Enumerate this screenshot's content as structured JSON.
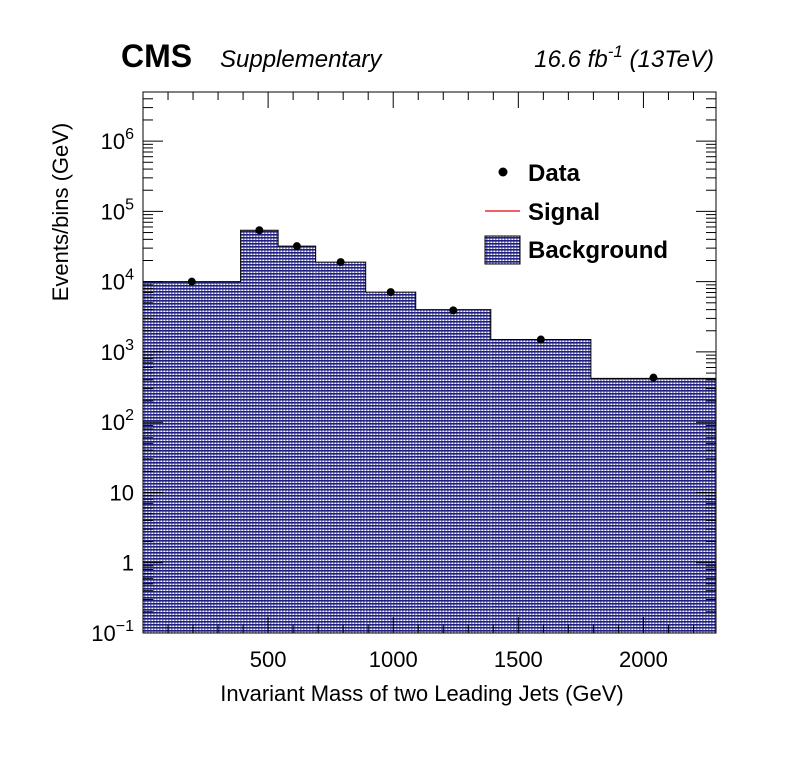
{
  "chart_data": {
    "type": "bar",
    "title": "",
    "header": {
      "experiment": "CMS",
      "status": "Supplementary",
      "luminosity_prefix": "16.6 fb",
      "luminosity_exponent": "-1",
      "energy": "(13TeV)"
    },
    "xlabel": "Invariant Mass of two Leading Jets (GeV)",
    "ylabel": "Events/bins (GeV)",
    "xlim": [
      0,
      2290
    ],
    "ylim": [
      0.1,
      5000000
    ],
    "yscale": "log",
    "x_ticks": [
      {
        "value": 500,
        "label": "500"
      },
      {
        "value": 1000,
        "label": "1000"
      },
      {
        "value": 1500,
        "label": "1500"
      },
      {
        "value": 2000,
        "label": "2000"
      }
    ],
    "y_ticks": [
      {
        "value": 0.1,
        "base": "10",
        "exp": "−1"
      },
      {
        "value": 1,
        "base": "1",
        "exp": ""
      },
      {
        "value": 10,
        "base": "10",
        "exp": ""
      },
      {
        "value": 100,
        "base": "10",
        "exp": "2"
      },
      {
        "value": 1000,
        "base": "10",
        "exp": "3"
      },
      {
        "value": 10000,
        "base": "10",
        "exp": "4"
      },
      {
        "value": 100000,
        "base": "10",
        "exp": "5"
      },
      {
        "value": 1000000,
        "base": "10",
        "exp": "6"
      }
    ],
    "background_bins": [
      {
        "lo": 0,
        "hi": 390,
        "value": 10000
      },
      {
        "lo": 390,
        "hi": 540,
        "value": 54000
      },
      {
        "lo": 540,
        "hi": 690,
        "value": 32000
      },
      {
        "lo": 690,
        "hi": 890,
        "value": 19000
      },
      {
        "lo": 890,
        "hi": 1090,
        "value": 7100
      },
      {
        "lo": 1090,
        "hi": 1390,
        "value": 4000
      },
      {
        "lo": 1390,
        "hi": 1790,
        "value": 1500
      },
      {
        "lo": 1790,
        "hi": 2290,
        "value": 420
      }
    ],
    "data_points": [
      {
        "x": 195,
        "y": 10000
      },
      {
        "x": 465,
        "y": 54000
      },
      {
        "x": 615,
        "y": 32000
      },
      {
        "x": 790,
        "y": 19000
      },
      {
        "x": 990,
        "y": 7100
      },
      {
        "x": 1240,
        "y": 3900
      },
      {
        "x": 1590,
        "y": 1500
      },
      {
        "x": 2040,
        "y": 430
      }
    ],
    "signal": [],
    "legend": {
      "position": "top-right",
      "entries": [
        {
          "label": "Data",
          "style": "marker"
        },
        {
          "label": "Signal",
          "style": "line"
        },
        {
          "label": "Background",
          "style": "hatched-fill"
        }
      ]
    },
    "colors": {
      "data": "#000000",
      "signal": "#e8000b",
      "background_fill": "#1f1f80",
      "background_line": "#000000"
    },
    "grid": false
  }
}
